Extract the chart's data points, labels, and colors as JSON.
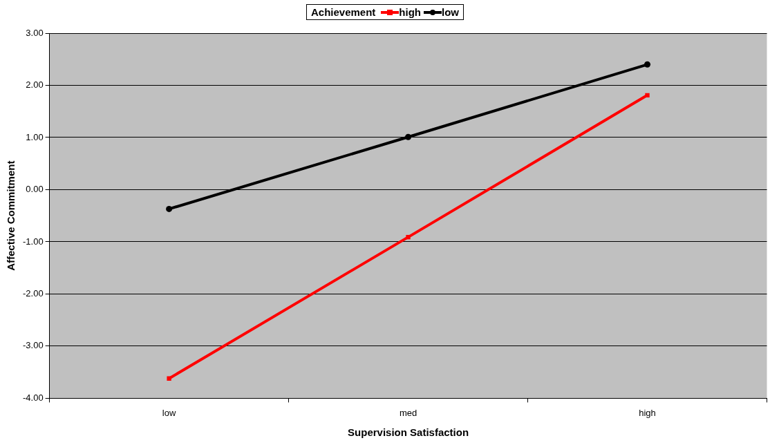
{
  "chart_data": {
    "type": "line",
    "xlabel": "Supervision Satisfaction",
    "ylabel": "Affective Commitment",
    "legend_title": "Achievement",
    "categories": [
      "low",
      "med",
      "high"
    ],
    "series": [
      {
        "name": "high",
        "color": "#ff0000",
        "values": [
          -3.62,
          -0.91,
          1.81
        ],
        "marker": "square"
      },
      {
        "name": "low",
        "color": "#000000",
        "values": [
          -0.37,
          1.01,
          2.4
        ],
        "marker": "circle"
      }
    ],
    "ylim": [
      -4,
      3
    ],
    "yticks": [
      {
        "value": -4,
        "label": "-4.00"
      },
      {
        "value": -3,
        "label": "-3.00"
      },
      {
        "value": -2,
        "label": "-2.00"
      },
      {
        "value": -1,
        "label": "-1.00"
      },
      {
        "value": 0,
        "label": "0.00"
      },
      {
        "value": 1,
        "label": "1.00"
      },
      {
        "value": 2,
        "label": "2.00"
      },
      {
        "value": 3,
        "label": "3.00"
      }
    ],
    "grid": "y",
    "legend": "top",
    "line_style": "solid"
  }
}
